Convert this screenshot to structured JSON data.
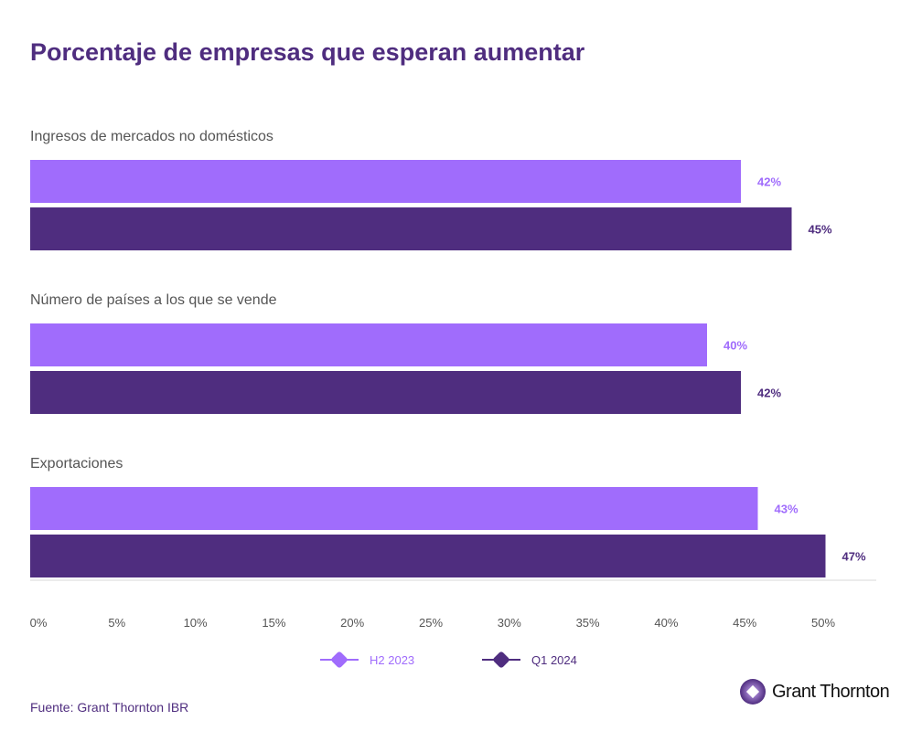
{
  "chart_data": {
    "type": "bar",
    "orientation": "horizontal",
    "title": "Porcentaje de empresas que esperan aumentar",
    "categories": [
      "Ingresos de mercados no domésticos",
      "Número de países a los que se vende",
      "Exportaciones"
    ],
    "series": [
      {
        "name": "H2 2023",
        "values": [
          42,
          40,
          43
        ],
        "labels": [
          "42%",
          "40%",
          "43%"
        ],
        "color": "#a06cfc"
      },
      {
        "name": "Q1 2024",
        "values": [
          45,
          42,
          47
        ],
        "labels": [
          "45%",
          "42%",
          "47%"
        ],
        "color": "#4f2d7f"
      }
    ],
    "xticks": [
      "0%",
      "5%",
      "10%",
      "15%",
      "20%",
      "25%",
      "30%",
      "35%",
      "40%",
      "45%",
      "50%"
    ],
    "xlim": [
      0,
      50
    ],
    "grid": false,
    "legend_position": "bottom"
  },
  "source": "Fuente: Grant Thornton IBR",
  "logo": {
    "text": "Grant Thornton"
  },
  "colors": {
    "title": "#4f2d7f",
    "category_label": "#555555",
    "axis_line": "#d9d9d9"
  }
}
